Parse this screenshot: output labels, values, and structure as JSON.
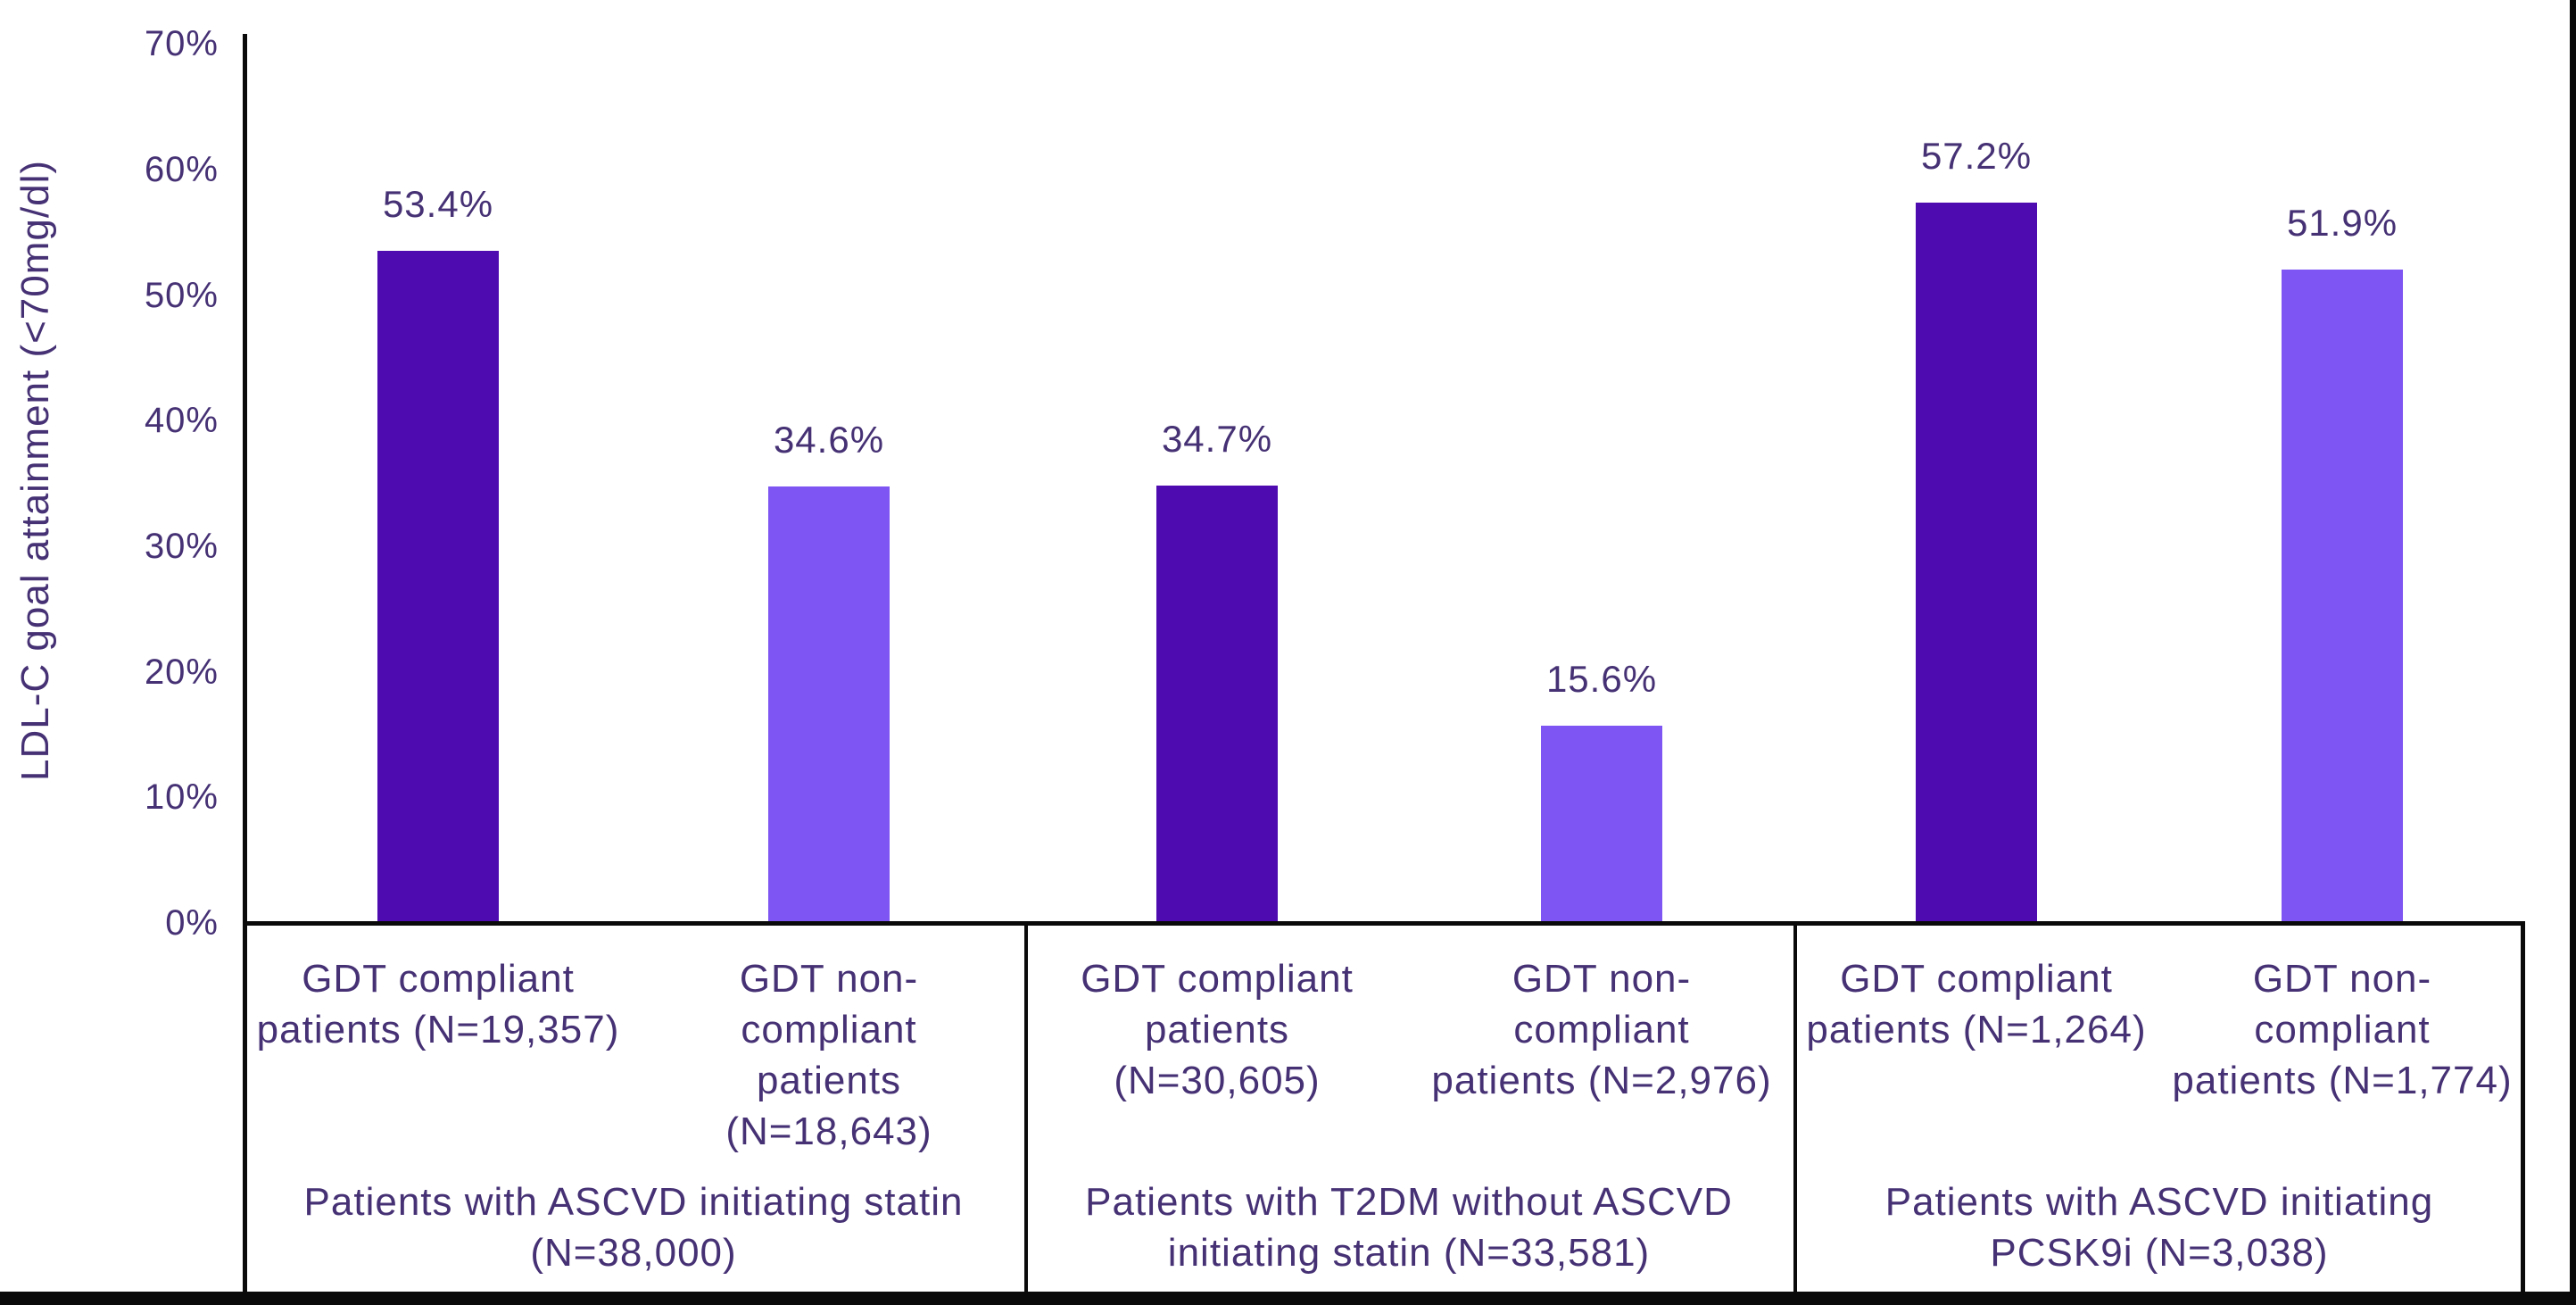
{
  "chart_data": {
    "type": "bar",
    "title": "",
    "ylabel": "LDL-C goal attainment (<70mg/dl)",
    "xlabel": "",
    "ylim": [
      0,
      70
    ],
    "grid": false,
    "legend": "none",
    "y_ticks": [
      {
        "label": "0%",
        "value": 0
      },
      {
        "label": "10%",
        "value": 10
      },
      {
        "label": "20%",
        "value": 20
      },
      {
        "label": "30%",
        "value": 30
      },
      {
        "label": "40%",
        "value": 40
      },
      {
        "label": "50%",
        "value": 50
      },
      {
        "label": "60%",
        "value": 60
      },
      {
        "label": "70%",
        "value": 70
      }
    ],
    "colors": {
      "compliant": "#4E0BAF",
      "non_compliant": "#7E54F2",
      "text": "#453174",
      "axis": "#0a0a0a"
    },
    "groups": [
      {
        "label": "Patients with ASCVD initiating statin (N=38,000)",
        "label_lines": [
          "Patients with ASCVD initiating statin",
          "(N=38,000)"
        ],
        "bars": [
          {
            "label": "GDT compliant patients (N=19,357)",
            "label_lines": [
              "GDT compliant",
              "patients (N=19,357)"
            ],
            "series": "compliant",
            "value": 53.4,
            "display": "53.4%"
          },
          {
            "label": "GDT non-compliant patients (N=18,643)",
            "label_lines": [
              "GDT non-",
              "compliant",
              "patients",
              "(N=18,643)"
            ],
            "series": "non_compliant",
            "value": 34.6,
            "display": "34.6%"
          }
        ]
      },
      {
        "label": "Patients with T2DM without ASCVD initiating statin (N=33,581)",
        "label_lines": [
          "Patients with T2DM without ASCVD",
          "initiating statin (N=33,581)"
        ],
        "bars": [
          {
            "label": "GDT compliant patients (N=30,605)",
            "label_lines": [
              "GDT compliant",
              "patients",
              "(N=30,605)"
            ],
            "series": "compliant",
            "value": 34.7,
            "display": "34.7%"
          },
          {
            "label": "GDT non-compliant patients (N=2,976)",
            "label_lines": [
              "GDT non-",
              "compliant",
              "patients (N=2,976)"
            ],
            "series": "non_compliant",
            "value": 15.6,
            "display": "15.6%"
          }
        ]
      },
      {
        "label": "Patients with ASCVD initiating PCSK9i (N=3,038)",
        "label_lines": [
          "Patients with ASCVD initiating",
          "PCSK9i (N=3,038)"
        ],
        "bars": [
          {
            "label": "GDT compliant patients (N=1,264)",
            "label_lines": [
              "GDT compliant",
              "patients (N=1,264)"
            ],
            "series": "compliant",
            "value": 57.2,
            "display": "57.2%"
          },
          {
            "label": "GDT non-compliant patients (N=1,774)",
            "label_lines": [
              "GDT non-",
              "compliant",
              "patients (N=1,774)"
            ],
            "series": "non_compliant",
            "value": 51.9,
            "display": "51.9%"
          }
        ]
      }
    ]
  }
}
